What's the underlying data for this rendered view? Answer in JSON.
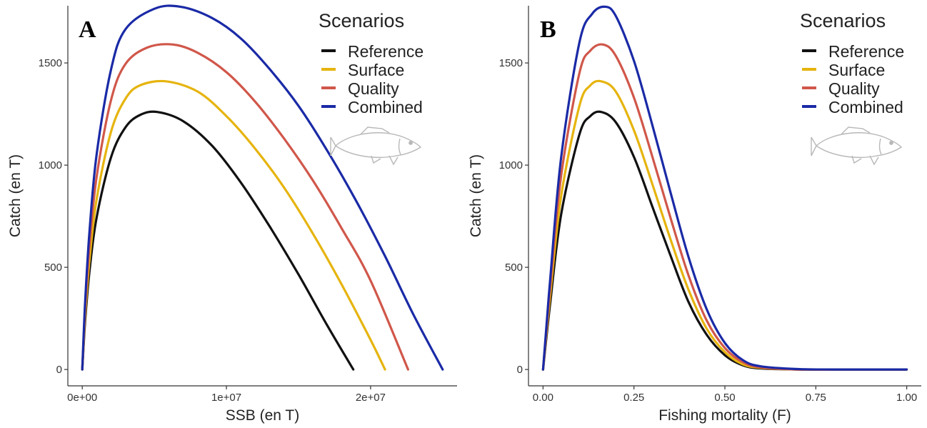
{
  "chart_data": [
    {
      "panel": "A",
      "type": "line",
      "xlabel": "SSB (en T)",
      "ylabel": "Catch (en T)",
      "xlim": [
        -1000000,
        26000000
      ],
      "ylim": [
        -80,
        1780
      ],
      "xticks": [
        0,
        10000000,
        20000000
      ],
      "xtick_labels": [
        "0e+00",
        "1e+07",
        "2e+07"
      ],
      "yticks": [
        0,
        500,
        1000,
        1500
      ],
      "ytick_labels": [
        "0",
        "500",
        "1000",
        "1500"
      ],
      "grid": false,
      "legend": {
        "title": "Scenarios",
        "placement": "top-right",
        "entries": [
          "Reference",
          "Surface",
          "Quality",
          "Combined"
        ]
      },
      "series": [
        {
          "name": "Reference",
          "color": "#111111",
          "x": [
            0,
            200000,
            500000,
            1000000,
            2000000,
            3000000,
            4000000,
            5200000,
            7000000,
            9000000,
            11000000,
            13000000,
            15000000,
            17000000,
            18800000
          ],
          "y": [
            0,
            235,
            480,
            745,
            1040,
            1185,
            1245,
            1260,
            1215,
            1095,
            915,
            700,
            465,
            215,
            0
          ]
        },
        {
          "name": "Surface",
          "color": "#e6b40e",
          "x": [
            0,
            200000,
            500000,
            1000000,
            2000000,
            3000000,
            4000000,
            5800000,
            8000000,
            10000000,
            12000000,
            14000000,
            16000000,
            18000000,
            20000000,
            21000000
          ],
          "y": [
            0,
            262,
            535,
            835,
            1165,
            1325,
            1390,
            1410,
            1360,
            1240,
            1080,
            890,
            665,
            415,
            145,
            0
          ]
        },
        {
          "name": "Quality",
          "color": "#d0574a",
          "x": [
            0,
            200000,
            500000,
            1000000,
            2000000,
            3000000,
            4500000,
            6300000,
            8000000,
            10000000,
            12000000,
            14000000,
            16000000,
            18000000,
            20000000,
            22600000
          ],
          "y": [
            0,
            295,
            605,
            945,
            1320,
            1495,
            1575,
            1590,
            1550,
            1455,
            1310,
            1130,
            925,
            690,
            435,
            0
          ]
        },
        {
          "name": "Combined",
          "color": "#1a2aa6",
          "x": [
            0,
            200000,
            500000,
            1000000,
            2000000,
            3000000,
            5000000,
            6800000,
            9000000,
            11000000,
            13000000,
            15000000,
            17000000,
            19000000,
            21000000,
            23000000,
            25000000
          ],
          "y": [
            0,
            330,
            675,
            1055,
            1470,
            1665,
            1765,
            1775,
            1720,
            1620,
            1470,
            1290,
            1070,
            825,
            555,
            265,
            0
          ]
        }
      ]
    },
    {
      "panel": "B",
      "type": "line",
      "xlabel": "Fishing mortality (F)",
      "ylabel": "Catch (en T)",
      "xlim": [
        -0.04,
        1.04
      ],
      "ylim": [
        -80,
        1780
      ],
      "xticks": [
        0,
        0.25,
        0.5,
        0.75,
        1.0
      ],
      "xtick_labels": [
        "0.00",
        "0.25",
        "0.50",
        "0.75",
        "1.00"
      ],
      "yticks": [
        0,
        500,
        1000,
        1500
      ],
      "ytick_labels": [
        "0",
        "500",
        "1000",
        "1500"
      ],
      "grid": false,
      "legend": {
        "title": "Scenarios",
        "placement": "top-right",
        "entries": [
          "Reference",
          "Surface",
          "Quality",
          "Combined"
        ]
      },
      "series": [
        {
          "name": "Reference",
          "color": "#111111",
          "x": [
            0,
            0.02,
            0.05,
            0.1,
            0.13,
            0.16,
            0.2,
            0.25,
            0.3,
            0.35,
            0.4,
            0.45,
            0.5,
            0.55,
            0.6,
            0.7,
            0.8,
            1.0
          ],
          "y": [
            0,
            330,
            760,
            1150,
            1240,
            1260,
            1210,
            1040,
            800,
            560,
            330,
            170,
            70,
            20,
            5,
            0,
            0,
            0
          ]
        },
        {
          "name": "Surface",
          "color": "#e6b40e",
          "x": [
            0,
            0.02,
            0.05,
            0.1,
            0.13,
            0.16,
            0.2,
            0.25,
            0.3,
            0.35,
            0.4,
            0.45,
            0.5,
            0.55,
            0.6,
            0.7,
            0.8,
            1.0
          ],
          "y": [
            0,
            370,
            850,
            1290,
            1390,
            1410,
            1360,
            1170,
            910,
            640,
            390,
            200,
            85,
            25,
            8,
            0,
            0,
            0
          ]
        },
        {
          "name": "Quality",
          "color": "#d0574a",
          "x": [
            0,
            0.02,
            0.05,
            0.1,
            0.13,
            0.165,
            0.2,
            0.25,
            0.3,
            0.35,
            0.4,
            0.45,
            0.5,
            0.55,
            0.6,
            0.7,
            0.8,
            1.0
          ],
          "y": [
            0,
            410,
            950,
            1450,
            1560,
            1590,
            1535,
            1330,
            1045,
            745,
            460,
            240,
            105,
            35,
            10,
            0,
            0,
            0
          ]
        },
        {
          "name": "Combined",
          "color": "#1a2aa6",
          "x": [
            0,
            0.02,
            0.05,
            0.1,
            0.135,
            0.17,
            0.2,
            0.25,
            0.3,
            0.35,
            0.4,
            0.45,
            0.5,
            0.55,
            0.6,
            0.7,
            0.8,
            1.0
          ],
          "y": [
            0,
            450,
            1040,
            1600,
            1740,
            1775,
            1730,
            1510,
            1200,
            870,
            550,
            295,
            130,
            45,
            15,
            2,
            0,
            0
          ]
        }
      ]
    }
  ]
}
